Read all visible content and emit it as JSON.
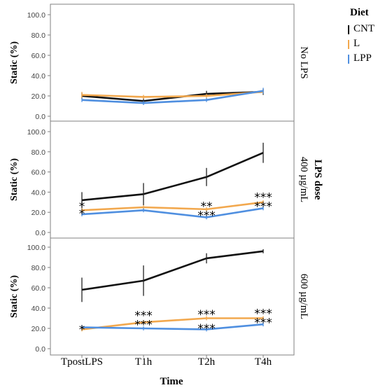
{
  "chart_data": {
    "type": "line",
    "x_label": "Time",
    "y_label": "Static (%)",
    "categories": [
      "TpostLPS",
      "T1h",
      "T2h",
      "T4h"
    ],
    "y_ticks": [
      "0.0",
      "20.0",
      "40.0",
      "60.0",
      "80.0",
      "100.0"
    ],
    "ylim": [
      0,
      100
    ],
    "legend": {
      "title": "Diet",
      "placement": "right",
      "entries": [
        {
          "label": "CNT",
          "color": "#111111"
        },
        {
          "label": "L",
          "color": "#f2a84e"
        },
        {
          "label": "LPP",
          "color": "#4f8fe0"
        }
      ]
    },
    "panels": [
      {
        "strip_label": "No LPS",
        "strip_bold": "",
        "series": [
          {
            "name": "CNT",
            "color": "#111111",
            "values": [
              20,
              15,
              22,
              24
            ],
            "errors": [
              3,
              3,
              3,
              3
            ]
          },
          {
            "name": "L",
            "color": "#f2a84e",
            "values": [
              21,
              19,
              20,
              24
            ],
            "errors": [
              3,
              2,
              2,
              2
            ]
          },
          {
            "name": "LPP",
            "color": "#4f8fe0",
            "values": [
              16,
              13,
              16,
              25
            ],
            "errors": [
              2,
              2,
              2,
              3
            ]
          }
        ],
        "stars": []
      },
      {
        "strip_label": "400 µg/mL",
        "strip_bold": "LPS dose",
        "series": [
          {
            "name": "CNT",
            "color": "#111111",
            "values": [
              32,
              38,
              55,
              79
            ],
            "errors": [
              8,
              11,
              9,
              10
            ]
          },
          {
            "name": "L",
            "color": "#f2a84e",
            "values": [
              22,
              25,
              23,
              30
            ],
            "errors": [
              2,
              2,
              2,
              2
            ]
          },
          {
            "name": "LPP",
            "color": "#4f8fe0",
            "values": [
              18,
              22,
              15,
              24
            ],
            "errors": [
              2,
              2,
              2,
              2
            ]
          }
        ],
        "stars": [
          {
            "x": 0,
            "y": 28,
            "text": "*"
          },
          {
            "x": 0,
            "y": 21,
            "text": "*"
          },
          {
            "x": 2,
            "y": 28,
            "text": "**"
          },
          {
            "x": 2,
            "y": 19,
            "text": "***"
          },
          {
            "x": 3,
            "y": 37,
            "text": "***"
          },
          {
            "x": 3,
            "y": 28,
            "text": "***"
          }
        ]
      },
      {
        "strip_label": "600 µg/mL",
        "strip_bold": "",
        "series": [
          {
            "name": "CNT",
            "color": "#111111",
            "values": [
              58,
              67,
              89,
              96
            ],
            "errors": [
              12,
              15,
              5,
              2
            ]
          },
          {
            "name": "L",
            "color": "#f2a84e",
            "values": [
              19,
              26,
              30,
              30
            ],
            "errors": [
              2,
              2,
              2,
              2
            ]
          },
          {
            "name": "LPP",
            "color": "#4f8fe0",
            "values": [
              21,
              20,
              19,
              24
            ],
            "errors": [
              2,
              2,
              2,
              2
            ]
          }
        ],
        "stars": [
          {
            "x": 0,
            "y": 21,
            "text": "*"
          },
          {
            "x": 1,
            "y": 35,
            "text": "***"
          },
          {
            "x": 1,
            "y": 26,
            "text": "***"
          },
          {
            "x": 2,
            "y": 36,
            "text": "***"
          },
          {
            "x": 2,
            "y": 22,
            "text": "***"
          },
          {
            "x": 3,
            "y": 37,
            "text": "***"
          },
          {
            "x": 3,
            "y": 28,
            "text": "***"
          }
        ]
      }
    ]
  }
}
